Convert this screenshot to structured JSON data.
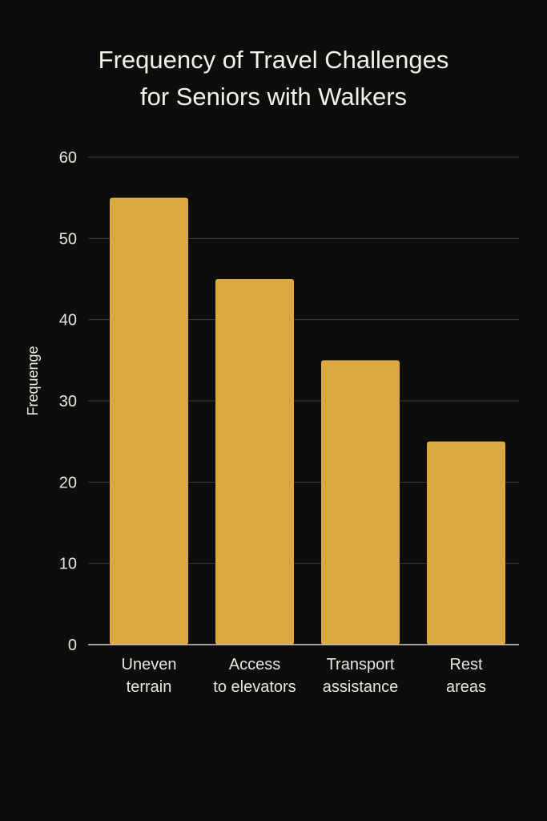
{
  "chart_data": {
    "type": "bar",
    "title_lines": [
      "Frequency of Travel Challenges",
      "for Seniors with Walkers"
    ],
    "ylabel": "Frequenge",
    "xlabel": "",
    "categories": [
      [
        "Uneven",
        "terrain"
      ],
      [
        "Access",
        "to elevators"
      ],
      [
        "Transport",
        "assistance"
      ],
      [
        "Rest",
        "areas"
      ]
    ],
    "values": [
      55,
      45,
      35,
      25
    ],
    "ylim": [
      0,
      60
    ],
    "yticks": [
      "0",
      "10",
      "20",
      "30",
      "40",
      "50",
      "60"
    ],
    "grid": true,
    "legend": "none",
    "colors": {
      "bar": "#daa941",
      "background": "#0d0d0b",
      "grid": "#3a3a36",
      "baseline": "#cfcdc6"
    }
  }
}
